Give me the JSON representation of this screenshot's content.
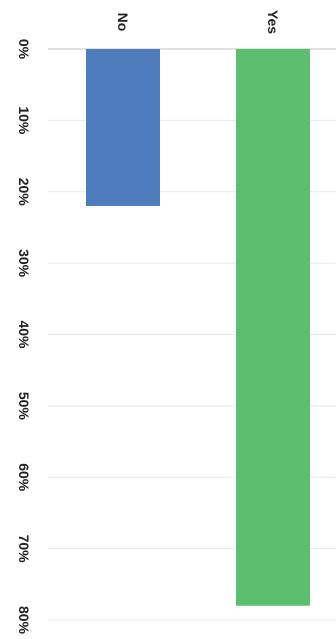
{
  "chart_data": {
    "type": "bar",
    "orientation": "horizontal",
    "categories": [
      "No",
      "Yes"
    ],
    "values": [
      22,
      78
    ],
    "colors": [
      "#4f7cbd",
      "#5cbf6f"
    ],
    "xlim": [
      0,
      80
    ],
    "ticks": [
      0,
      10,
      20,
      30,
      40,
      50,
      60,
      70,
      80
    ],
    "tick_labels": [
      "0%",
      "10%",
      "20%",
      "30%",
      "40%",
      "50%",
      "60%",
      "70%",
      "80%"
    ],
    "title": "",
    "xlabel": "",
    "ylabel": "",
    "grid": true,
    "legend": "none"
  }
}
